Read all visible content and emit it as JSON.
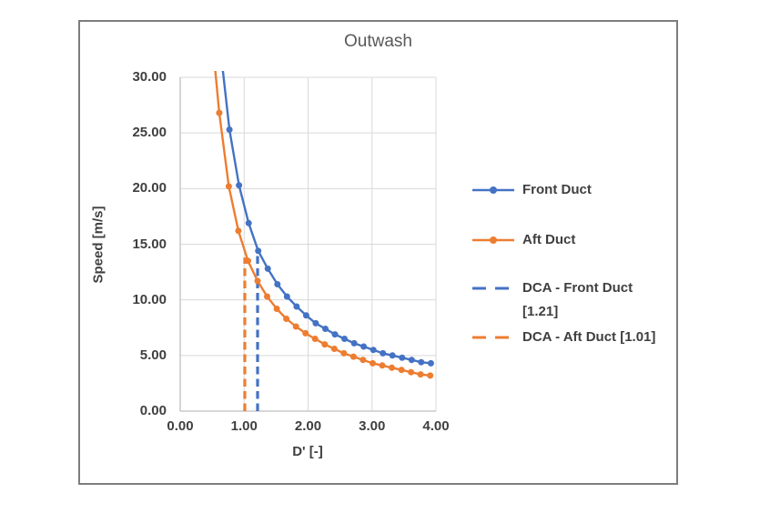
{
  "window": {
    "background_color": "#ffffff",
    "chart_border_color": "#7d7d7d"
  },
  "chart_data": {
    "type": "line",
    "title": "Outwash",
    "xlabel": "D' [-]",
    "ylabel": "Speed [m/s]",
    "xlim": [
      0,
      4
    ],
    "ylim": [
      0,
      30
    ],
    "x_ticks": [
      "0.00",
      "1.00",
      "2.00",
      "3.00",
      "4.00"
    ],
    "y_ticks": [
      "0.00",
      "5.00",
      "10.00",
      "15.00",
      "20.00",
      "25.00",
      "30.00"
    ],
    "grid": true,
    "gridline_color": "#d9d9d9",
    "axis_line_color": "#bfbfbf",
    "legend_position": "right",
    "series": [
      {
        "name": "Front Duct",
        "color": "#4472c4",
        "marker": "circle",
        "x": [
          0.77,
          0.92,
          1.07,
          1.22,
          1.37,
          1.52,
          1.67,
          1.82,
          1.97,
          2.12,
          2.27,
          2.42,
          2.57,
          2.72,
          2.87,
          3.02,
          3.17,
          3.32,
          3.47,
          3.62,
          3.77,
          3.92
        ],
        "y": [
          25.3,
          20.3,
          16.9,
          14.4,
          12.8,
          11.4,
          10.3,
          9.4,
          8.6,
          7.9,
          7.4,
          6.9,
          6.5,
          6.1,
          5.8,
          5.5,
          5.2,
          5.0,
          4.8,
          4.6,
          4.4,
          4.3
        ],
        "clipped_entry_point": {
          "x": 0.62,
          "y": 33.0
        }
      },
      {
        "name": "Aft Duct",
        "color": "#ed7d31",
        "marker": "circle",
        "x": [
          0.61,
          0.76,
          0.91,
          1.06,
          1.21,
          1.36,
          1.51,
          1.66,
          1.81,
          1.96,
          2.11,
          2.26,
          2.41,
          2.56,
          2.71,
          2.86,
          3.01,
          3.16,
          3.31,
          3.46,
          3.61,
          3.76,
          3.91
        ],
        "y": [
          26.8,
          20.2,
          16.2,
          13.5,
          11.7,
          10.3,
          9.2,
          8.3,
          7.6,
          7.0,
          6.5,
          6.0,
          5.6,
          5.2,
          4.9,
          4.6,
          4.3,
          4.1,
          3.9,
          3.7,
          3.5,
          3.3,
          3.2
        ],
        "clipped_entry_point": {
          "x": 0.46,
          "y": 36.0
        }
      }
    ],
    "reference_lines": [
      {
        "name": "DCA - Front Duct [1.21]",
        "color": "#4472c4",
        "style": "dashed",
        "x": 1.21,
        "y_top": 14.3
      },
      {
        "name": "DCA - Aft Duct [1.01]",
        "color": "#ed7d31",
        "style": "dashed",
        "x": 1.01,
        "y_top": 13.8
      }
    ]
  }
}
